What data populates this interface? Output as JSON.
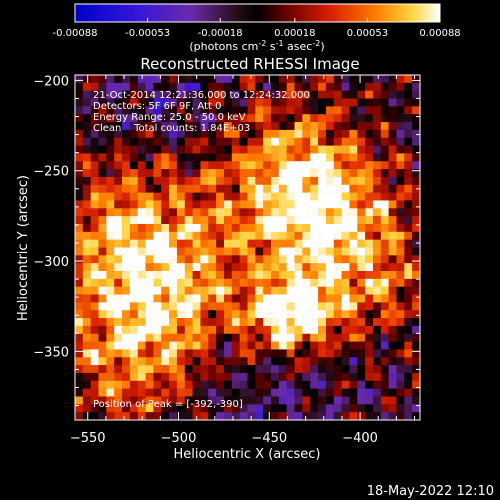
{
  "chart_data": {
    "type": "heatmap",
    "title": "Reconstructed RHESSI Image",
    "xlabel": "Heliocentric X (arcsec)",
    "ylabel": "Heliocentric Y (arcsec)",
    "xlim": [
      -557,
      -367
    ],
    "ylim": [
      -388,
      -197
    ],
    "x_ticks": [
      -550,
      -500,
      -450,
      -400
    ],
    "y_ticks": [
      -200,
      -250,
      -300,
      -350
    ],
    "colorbar": {
      "ticks": [
        "-0.00088",
        "-0.00053",
        "-0.00018",
        "0.00018",
        "0.00053",
        "0.00088"
      ],
      "range": [
        -0.00088,
        0.00088
      ],
      "unit_line1": "(photons cm",
      "unit_sup1": "-2",
      "unit_mid1": " s",
      "unit_sup2": "-1",
      "unit_mid2": " asec",
      "unit_sup3": "-2",
      "unit_end": ")"
    },
    "annotations": [
      "21-Oct-2014 12:21:36.000 to 12:24:32.000",
      "Detectors: 5F 6F 9F, Att 0",
      "Energy Range: 25.0 - 50.0 keV",
      "Clean    Total counts: 1.84E+03"
    ],
    "peak_label": "Position of Peak = [-392,-390]",
    "peak_position": [
      -392,
      -390
    ],
    "grid": false
  },
  "footer": {
    "timestamp": "18-May-2022 12:10"
  },
  "colors": {
    "background": "#000000",
    "foreground": "#ffffff"
  }
}
